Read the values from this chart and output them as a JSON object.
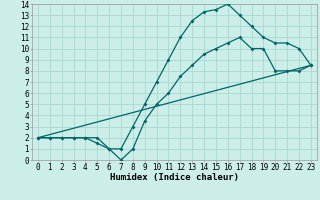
{
  "xlabel": "Humidex (Indice chaleur)",
  "bg_color": "#cceee8",
  "grid_color": "#aad8d2",
  "line_color": "#006666",
  "xlim": [
    -0.5,
    23.5
  ],
  "ylim": [
    0,
    14
  ],
  "xticks": [
    0,
    1,
    2,
    3,
    4,
    5,
    6,
    7,
    8,
    9,
    10,
    11,
    12,
    13,
    14,
    15,
    16,
    17,
    18,
    19,
    20,
    21,
    22,
    23
  ],
  "yticks": [
    0,
    1,
    2,
    3,
    4,
    5,
    6,
    7,
    8,
    9,
    10,
    11,
    12,
    13,
    14
  ],
  "line1_x": [
    0,
    1,
    2,
    3,
    4,
    5,
    6,
    7,
    8,
    9,
    10,
    11,
    12,
    13,
    14,
    15,
    16,
    17,
    18,
    19,
    20,
    21,
    22,
    23
  ],
  "line1_y": [
    2,
    2,
    2,
    2,
    2,
    2,
    1,
    1,
    3,
    5,
    7,
    9,
    11,
    12.5,
    13.3,
    13.5,
    14,
    13,
    12,
    11,
    10.5,
    10.5,
    10,
    8.5
  ],
  "line1_markers": [
    0,
    1,
    2,
    3,
    4,
    5,
    6,
    7,
    8,
    9,
    10,
    11,
    12,
    13,
    14,
    15,
    16,
    17,
    18,
    19,
    20,
    21,
    22,
    23
  ],
  "line2_x": [
    0,
    1,
    2,
    3,
    4,
    5,
    6,
    7,
    8,
    9,
    10,
    11,
    12,
    13,
    14,
    15,
    16,
    17,
    18,
    19,
    20,
    21,
    22,
    23
  ],
  "line2_y": [
    2,
    2,
    2,
    2,
    2,
    1.5,
    1,
    0,
    1,
    3.5,
    5,
    6,
    7.5,
    8.5,
    9.5,
    10,
    10.5,
    11,
    10,
    10,
    8,
    8,
    8,
    8.5
  ],
  "line2_markers": [
    0,
    1,
    2,
    3,
    4,
    5,
    6,
    7,
    8,
    9,
    10,
    11,
    12,
    13,
    14,
    15,
    16,
    17,
    18,
    19,
    20,
    21,
    22,
    23
  ],
  "line3_x": [
    0,
    23
  ],
  "line3_y": [
    2,
    8.5
  ],
  "tick_fontsize": 5.5,
  "xlabel_fontsize": 6.5
}
